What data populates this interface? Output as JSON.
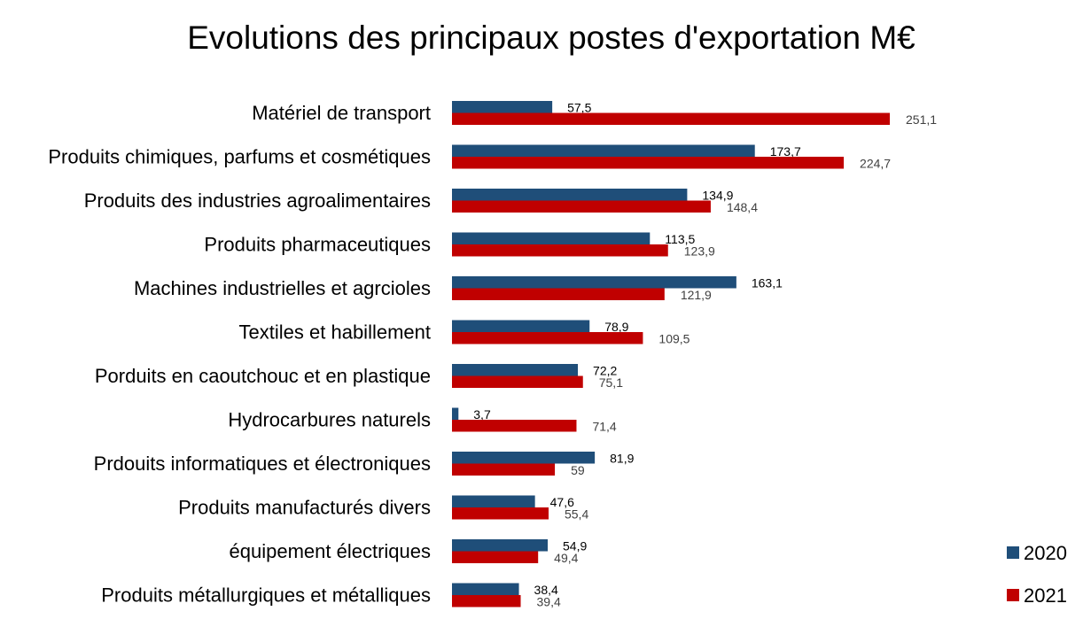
{
  "chart_data": {
    "type": "bar",
    "orientation": "horizontal",
    "title": "Evolutions des principaux postes d'exportation M€",
    "categories": [
      "Matériel de transport",
      "Produits chimiques, parfums et cosmétiques",
      "Produits des industries agroalimentaires",
      "Produits pharmaceutiques",
      "Machines industrielles et agrcioles",
      "Textiles et habillement",
      "Porduits en caoutchouc et en plastique",
      "Hydrocarbures naturels",
      "Prdouits informatiques et électroniques",
      "Produits manufacturés divers",
      "équipement électriques",
      "Produits métallurgiques et métalliques"
    ],
    "series": [
      {
        "name": "2020",
        "color": "#1f4e79",
        "values": [
          57.5,
          173.7,
          134.9,
          113.5,
          163.1,
          78.9,
          72.2,
          3.7,
          81.9,
          47.6,
          54.9,
          38.4
        ],
        "labels": [
          "57,5",
          "173,7",
          "134,9",
          "113,5",
          "163,1",
          "78,9",
          "72,2",
          "3,7",
          "81,9",
          "47,6",
          "54,9",
          "38,4"
        ]
      },
      {
        "name": "2021",
        "color": "#c00000",
        "values": [
          251.1,
          224.7,
          148.4,
          123.9,
          121.9,
          109.5,
          75.1,
          71.4,
          59,
          55.4,
          49.4,
          39.4
        ],
        "labels": [
          "251,1",
          "224,7",
          "148,4",
          "123,9",
          "121,9",
          "109,5",
          "75,1",
          "71,4",
          "59",
          "55,4",
          "49,4",
          "39,4"
        ]
      }
    ],
    "xlim": [
      0,
      300
    ],
    "grid": false,
    "legend_position": "bottom-right"
  }
}
